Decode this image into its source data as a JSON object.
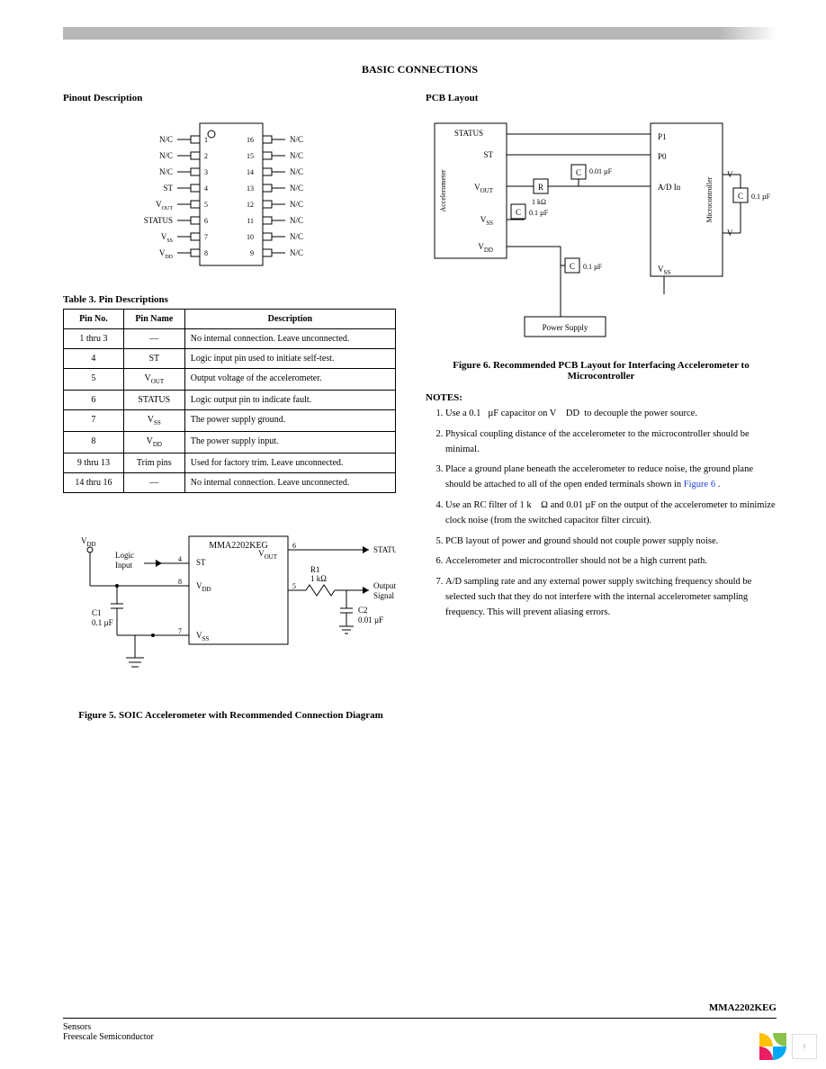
{
  "page": {
    "main_title": "BASIC CONNECTIONS",
    "part_number": "MMA2202KEG",
    "footer_line1": "Sensors",
    "footer_line2": "Freescale Semiconductor"
  },
  "left": {
    "pinout_title": "Pinout Description",
    "pinout": {
      "left_labels": [
        "N/C",
        "N/C",
        "N/C",
        "ST",
        "V",
        "STATUS",
        "V",
        "V"
      ],
      "left_subs": [
        "",
        "",
        "",
        "",
        "OUT",
        "",
        "SS",
        "DD"
      ],
      "left_nums": [
        1,
        2,
        3,
        4,
        5,
        6,
        7,
        8
      ],
      "right_labels": [
        "N/C",
        "N/C",
        "N/C",
        "N/C",
        "N/C",
        "N/C",
        "N/C",
        "N/C"
      ],
      "right_nums": [
        16,
        15,
        14,
        13,
        12,
        11,
        10,
        9
      ]
    },
    "table_title": "Table 3. Pin Descriptions",
    "table_headers": [
      "Pin No.",
      "Pin Name",
      "Description"
    ],
    "table_rows": [
      {
        "no": "1 thru 3",
        "name": "—",
        "desc": "No internal connection. Leave unconnected."
      },
      {
        "no": "4",
        "name": "ST",
        "desc": "Logic input pin used to initiate self-test."
      },
      {
        "no": "5",
        "name": "V",
        "name_sub": "OUT",
        "desc": "Output voltage of the accelerometer."
      },
      {
        "no": "6",
        "name": "STATUS",
        "desc": "Logic output pin to indicate fault."
      },
      {
        "no": "7",
        "name": "V",
        "name_sub": "SS",
        "desc": "The power supply ground."
      },
      {
        "no": "8",
        "name": "V",
        "name_sub": "DD",
        "desc": "The power supply input."
      },
      {
        "no": "9 thru 13",
        "name": "Trim pins",
        "desc": "Used for factory trim. Leave unconnected."
      },
      {
        "no": "14 thru 16",
        "name": "—",
        "desc": "No internal connection. Leave unconnected."
      }
    ],
    "fig5_caption": "Figure 5. SOIC Accelerometer with Recommended Connection Diagram",
    "fig5": {
      "chip_label": "MMA2202KEG",
      "vdd": "V",
      "vdd_sub": "DD",
      "logic_input": "Logic Input",
      "st": "ST",
      "pin4": "4",
      "pin8": "8",
      "pin7": "7",
      "pin5": "5",
      "pin6": "6",
      "vout": "V",
      "vout_sub": "OUT",
      "vss": "V",
      "vss_sub": "SS",
      "c1": "C1",
      "c1_val": "0.1 µF",
      "r1": "R1",
      "r1_val": "1 kΩ",
      "c2": "C2",
      "c2_val": "0.01 µF",
      "status": "STATUS",
      "output_signal": "Output Signal"
    }
  },
  "right": {
    "pcb_title": "PCB Layout",
    "fig6_caption": "Figure 6. Recommended PCB Layout for Interfacing Accelerometer to Microcontroller",
    "fig6": {
      "accel_box": "Accelerometer",
      "status_lbl": "STATUS",
      "st": "ST",
      "vout": "V",
      "vout_sub": "OUT",
      "vss": "V",
      "vss_sub": "SS",
      "vdd": "V",
      "vdd_sub": "DD",
      "r": "R",
      "r_val": "1 kΩ",
      "c": "C",
      "c_01": "0.1 µF",
      "c_001": "0.01 µF",
      "mcu": "Microcontroller",
      "p1": "P1",
      "p0": "P0",
      "adin": "A/D In",
      "v": "V",
      "power_supply": "Power Supply"
    },
    "notes_title": "NOTES:",
    "notes": [
      "Use a 0.1   µF capacitor on V    DD  to decouple the power source.",
      "Physical coupling distance of the accelerometer to the microcontroller should be minimal.",
      "Place a ground plane beneath the accelerometer to reduce noise, the ground plane should be attached to all of the open ended terminals shown in",
      "Use an RC filter of 1 k    Ω and 0.01 µF on the output of the accelerometer to minimize clock noise (from the switched capacitor filter circuit).",
      "PCB layout of power and ground should not couple power supply noise.",
      "Accelerometer and microcontroller should not be a high current path.",
      "A/D sampling rate and any external power supply switching frequency should be selected such that they do not interfere with the internal accelerometer sampling frequency. This will prevent aliasing errors."
    ],
    "note3_link": "Figure 6",
    "note3_tail": "."
  },
  "style": {
    "colors": {
      "text": "#000000",
      "bg": "#ffffff",
      "bar": "#b8b8b8",
      "link": "#1a3fd6",
      "corner_border": "#dddddd",
      "corner_chev": "#bbbbbb",
      "logo": [
        "#ffc107",
        "#8bc34a",
        "#03a9f4",
        "#e91e63"
      ]
    },
    "fonts": {
      "body_pt": 11,
      "small_pt": 10,
      "caption_pt": 11
    },
    "line_width": 1
  }
}
